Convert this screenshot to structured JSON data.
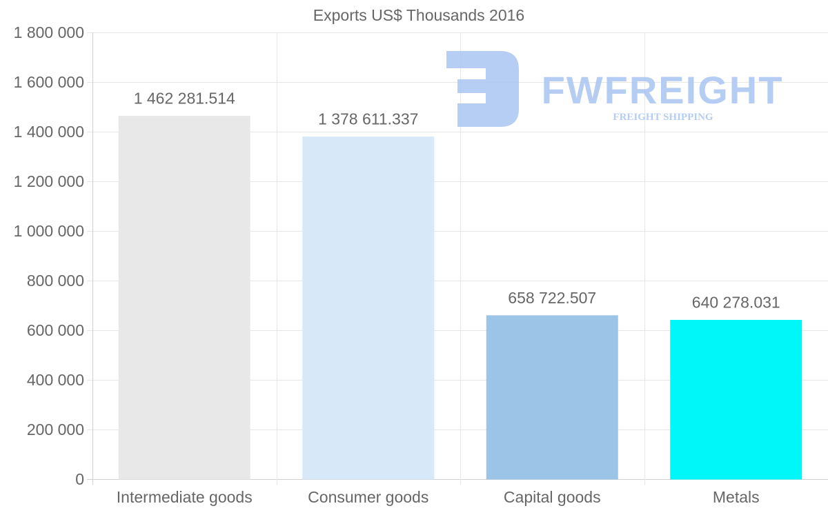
{
  "chart_data": {
    "type": "bar",
    "title": "Exports US$ Thousands 2016",
    "xlabel": "",
    "ylabel": "",
    "ylim": [
      0,
      1800000
    ],
    "yticks": [
      0,
      200000,
      400000,
      600000,
      800000,
      1000000,
      1200000,
      1400000,
      1600000,
      1800000
    ],
    "ytick_labels": [
      "0",
      "200 000",
      "400 000",
      "600 000",
      "800 000",
      "1 000 000",
      "1 200 000",
      "1 400 000",
      "1 600 000",
      "1 800 000"
    ],
    "grid": true,
    "categories": [
      "Intermediate goods",
      "Consumer goods",
      "Capital goods",
      "Metals"
    ],
    "values": [
      1462281.514,
      1378611.337,
      658722.507,
      640278.031
    ],
    "data_labels": [
      "1 462 281.514",
      "1 378 611.337",
      "658 722.507",
      "640 278.031"
    ],
    "colors": [
      "#e8e8e8",
      "#d7e8f9",
      "#9cc4e6",
      "#00f7f9"
    ]
  },
  "watermark": {
    "brand": "FWFREIGHT",
    "tagline": "FREIGHT SHIPPING",
    "color": "#a9c5f2"
  }
}
